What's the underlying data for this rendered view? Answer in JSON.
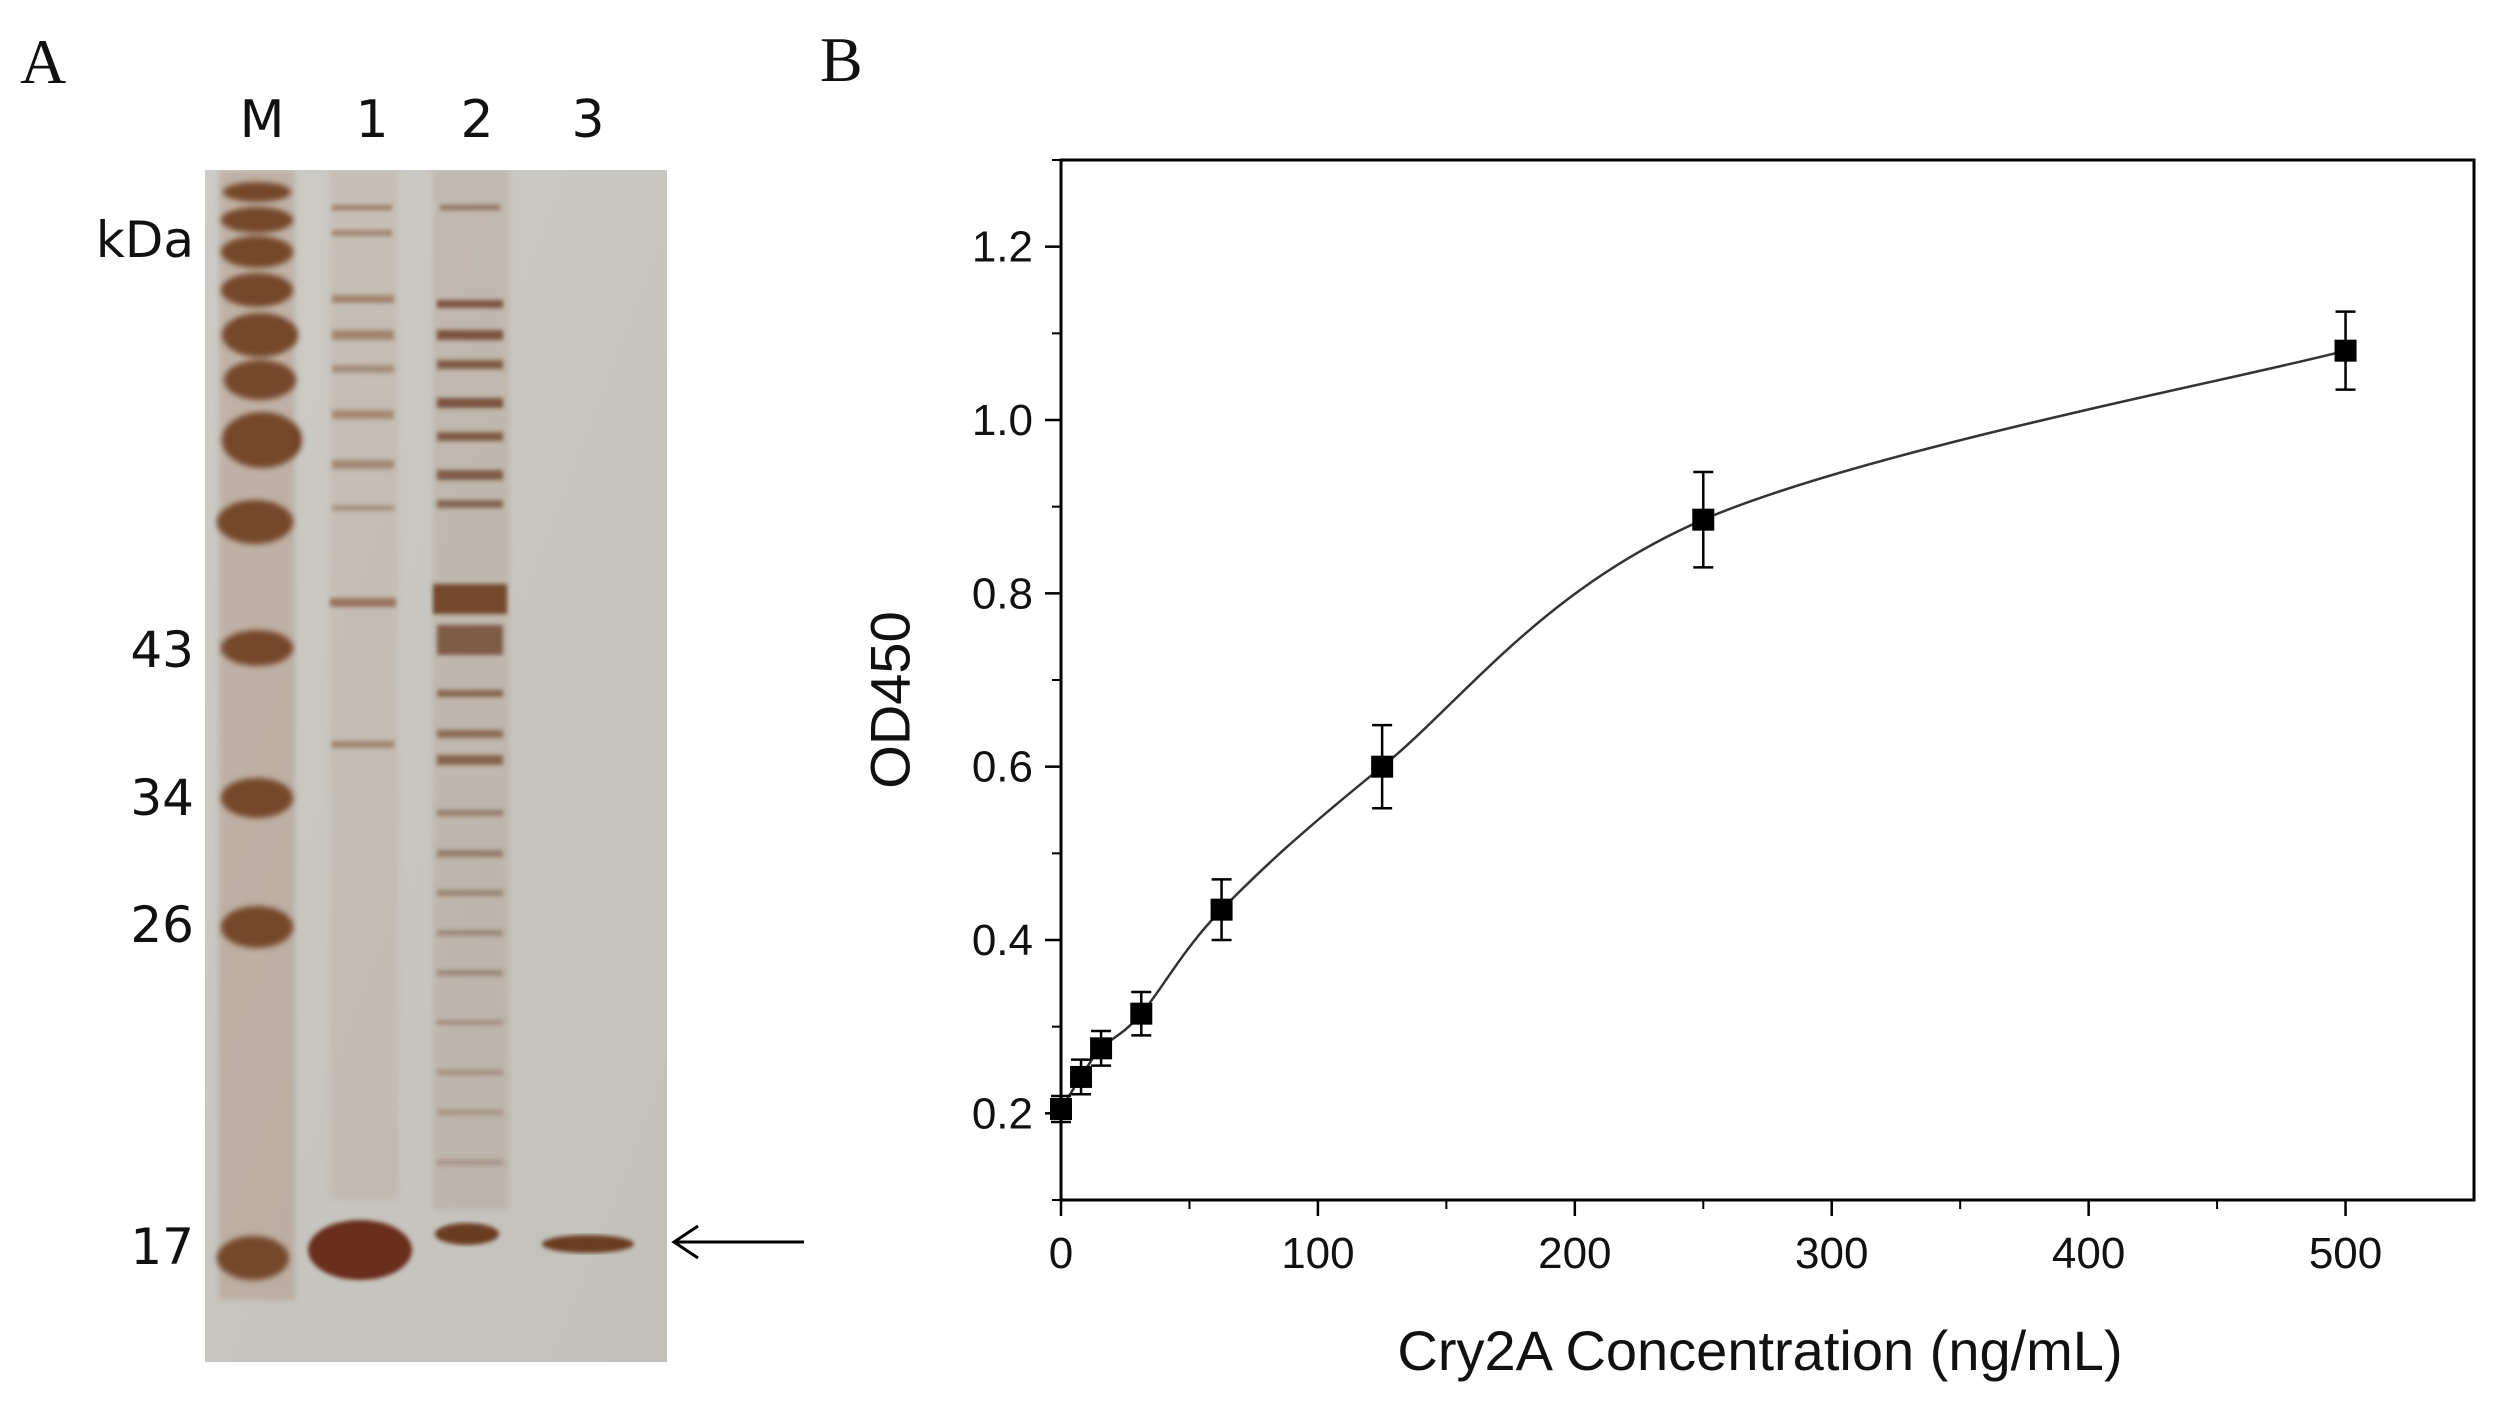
{
  "panels": {
    "a_label": "A",
    "b_label": "B"
  },
  "gel": {
    "lanes": [
      "M",
      "1",
      "2",
      "3"
    ],
    "unit": "kDa",
    "markers": [
      "43",
      "34",
      "26",
      "17"
    ],
    "colors": {
      "background": "#c8c6c1",
      "band_dark": "#6b3d24",
      "band_light": "#9a6a4a"
    }
  },
  "chart_data": {
    "type": "scatter",
    "xlabel": "Cry2A Concentration (ng/mL)",
    "ylabel": "OD450",
    "xlim": [
      0,
      550
    ],
    "ylim": [
      0.1,
      1.3
    ],
    "xticks": [
      "0",
      "100",
      "200",
      "300",
      "400",
      "500"
    ],
    "yticks": [
      "0.2",
      "0.4",
      "0.6",
      "0.8",
      "1.0",
      "1.2"
    ],
    "x": [
      0,
      7.8,
      15.6,
      31.25,
      62.5,
      125,
      250,
      500
    ],
    "y": [
      0.205,
      0.242,
      0.275,
      0.315,
      0.435,
      0.6,
      0.885,
      1.08
    ],
    "yerr": [
      0.015,
      0.02,
      0.02,
      0.025,
      0.035,
      0.048,
      0.055,
      0.045
    ],
    "fit_curve": true,
    "grid": false,
    "marker": "square",
    "color": "#000000"
  }
}
